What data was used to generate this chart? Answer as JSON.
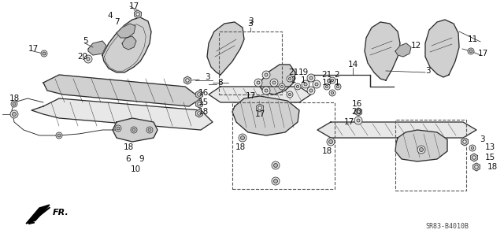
{
  "background_color": "#ffffff",
  "diagram_code": "SR83-B4010B",
  "fr_label": "FR.",
  "fig_width": 6.4,
  "fig_height": 3.2,
  "dpi": 100,
  "line_color": "#2a2a2a",
  "fill_light": "#e8e8e8",
  "fill_mid": "#d0d0d0",
  "fill_dark": "#b8b8b8"
}
